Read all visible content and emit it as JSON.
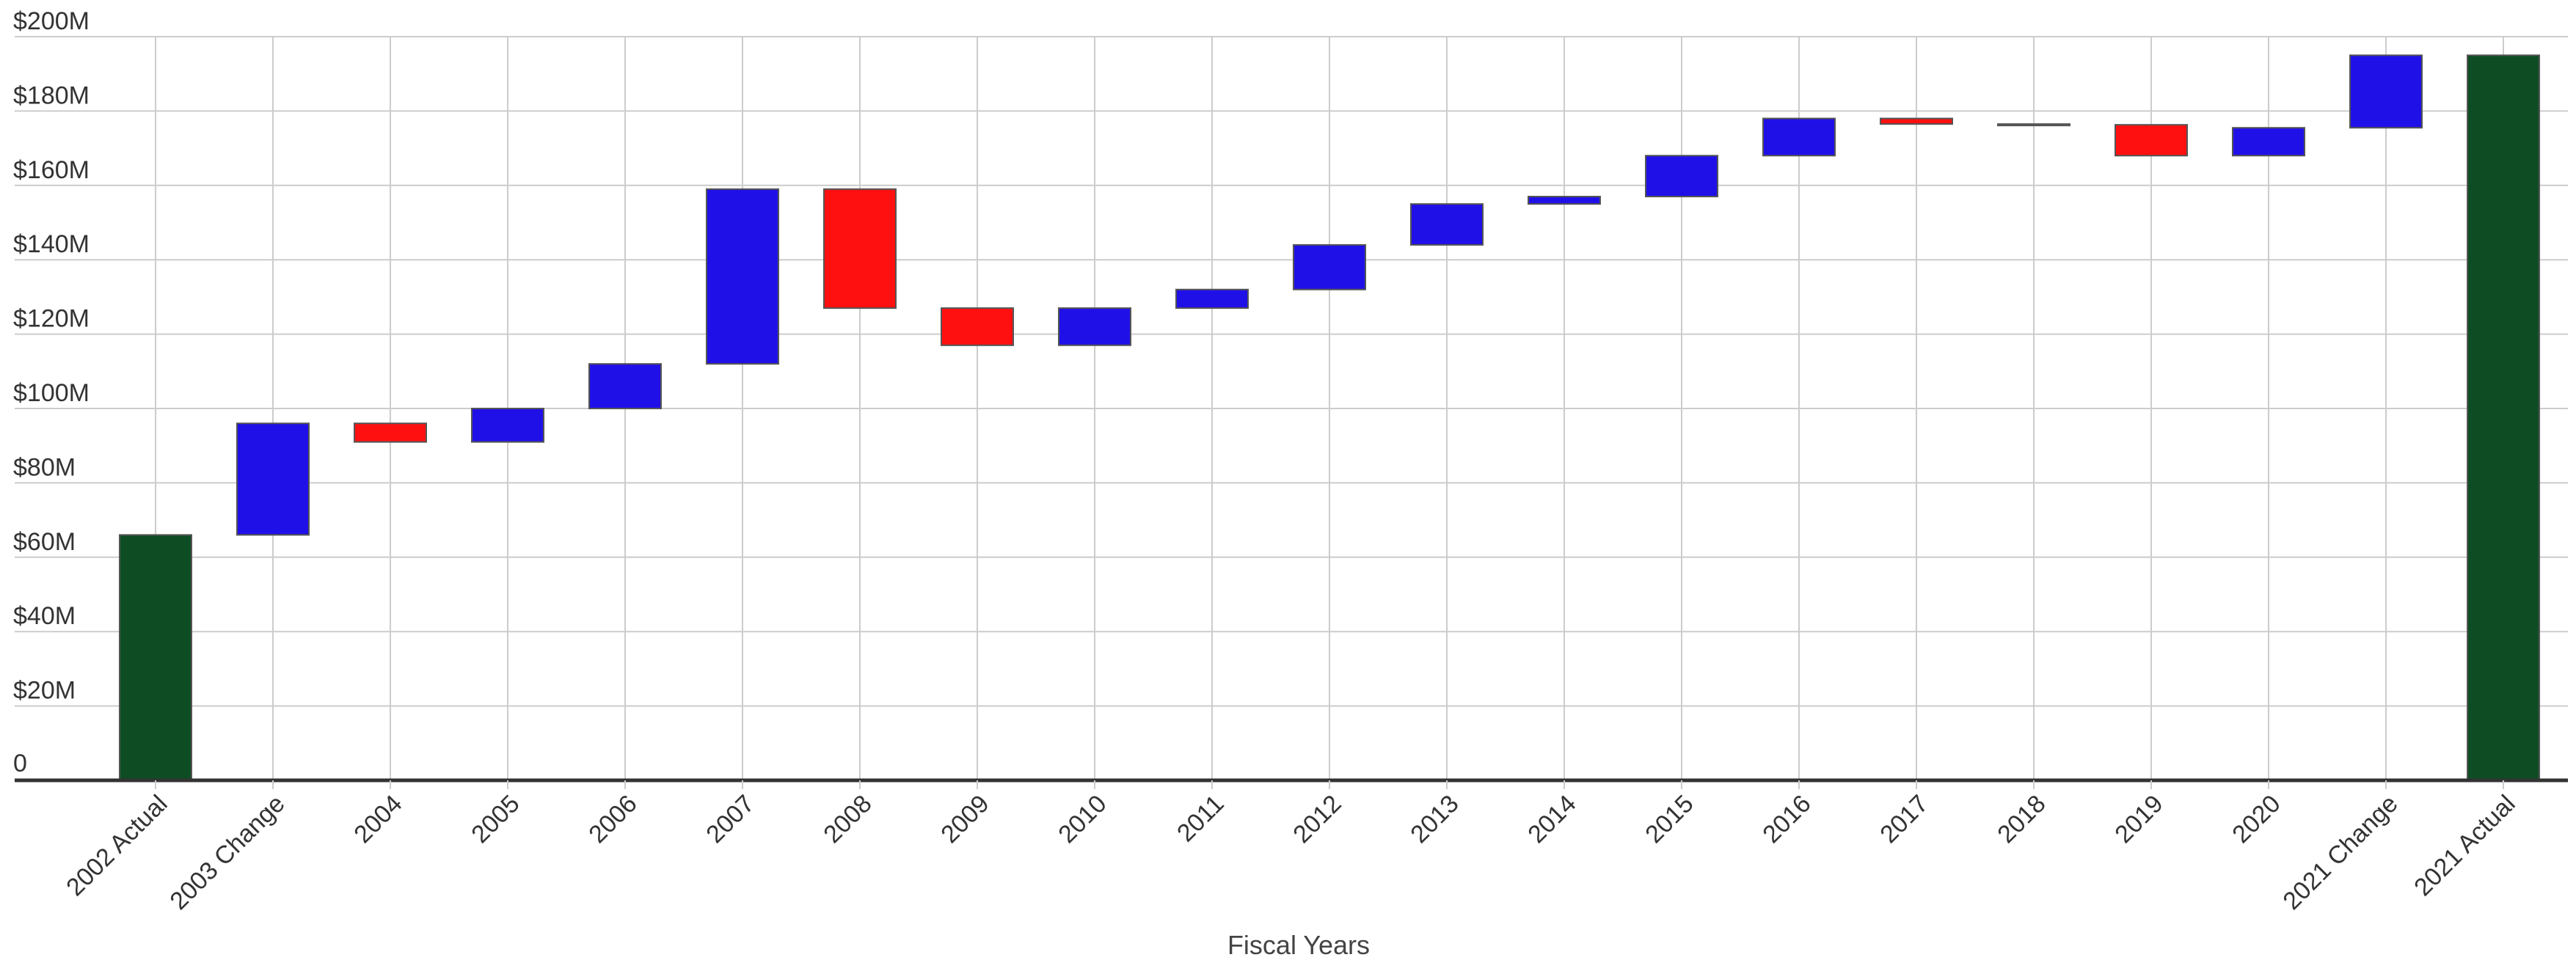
{
  "chart_data": {
    "type": "waterfall",
    "title": "",
    "xlabel": "Fiscal Years",
    "ylabel": "",
    "ylim": [
      0,
      200
    ],
    "y_unit": "$M",
    "y_ticks": [
      {
        "value": 0,
        "label": "0"
      },
      {
        "value": 20,
        "label": "$20M"
      },
      {
        "value": 40,
        "label": "$40M"
      },
      {
        "value": 60,
        "label": "$60M"
      },
      {
        "value": 80,
        "label": "$80M"
      },
      {
        "value": 100,
        "label": "$100M"
      },
      {
        "value": 120,
        "label": "$120M"
      },
      {
        "value": 140,
        "label": "$140M"
      },
      {
        "value": 160,
        "label": "$160M"
      },
      {
        "value": 180,
        "label": "$180M"
      },
      {
        "value": 200,
        "label": "$200M"
      }
    ],
    "grid": true,
    "colors": {
      "total": "#0e4d24",
      "increase": "#2010e8",
      "decrease": "#ff1010",
      "bar_border": "#555555"
    },
    "bars": [
      {
        "category": "2002 Actual",
        "kind": "total",
        "start": 0,
        "end": 66
      },
      {
        "category": "2003 Change",
        "kind": "increase",
        "start": 66,
        "end": 96
      },
      {
        "category": "2004",
        "kind": "decrease",
        "start": 96,
        "end": 91
      },
      {
        "category": "2005",
        "kind": "increase",
        "start": 91,
        "end": 100
      },
      {
        "category": "2006",
        "kind": "increase",
        "start": 100,
        "end": 112
      },
      {
        "category": "2007",
        "kind": "increase",
        "start": 112,
        "end": 159
      },
      {
        "category": "2008",
        "kind": "decrease",
        "start": 159,
        "end": 127
      },
      {
        "category": "2009",
        "kind": "decrease",
        "start": 127,
        "end": 117
      },
      {
        "category": "2010",
        "kind": "increase",
        "start": 117,
        "end": 127
      },
      {
        "category": "2011",
        "kind": "increase",
        "start": 127,
        "end": 132
      },
      {
        "category": "2012",
        "kind": "increase",
        "start": 132,
        "end": 144
      },
      {
        "category": "2013",
        "kind": "increase",
        "start": 144,
        "end": 155
      },
      {
        "category": "2014",
        "kind": "increase",
        "start": 155,
        "end": 157
      },
      {
        "category": "2015",
        "kind": "increase",
        "start": 157,
        "end": 168
      },
      {
        "category": "2016",
        "kind": "increase",
        "start": 168,
        "end": 178
      },
      {
        "category": "2017",
        "kind": "decrease",
        "start": 178,
        "end": 176.5
      },
      {
        "category": "2018",
        "kind": "decrease",
        "start": 176.5,
        "end": 176.3
      },
      {
        "category": "2019",
        "kind": "decrease",
        "start": 176.3,
        "end": 168
      },
      {
        "category": "2020",
        "kind": "increase",
        "start": 168,
        "end": 175.5
      },
      {
        "category": "2021 Change",
        "kind": "increase",
        "start": 175.5,
        "end": 195
      },
      {
        "category": "2021 Actual",
        "kind": "total",
        "start": 0,
        "end": 195
      }
    ]
  }
}
